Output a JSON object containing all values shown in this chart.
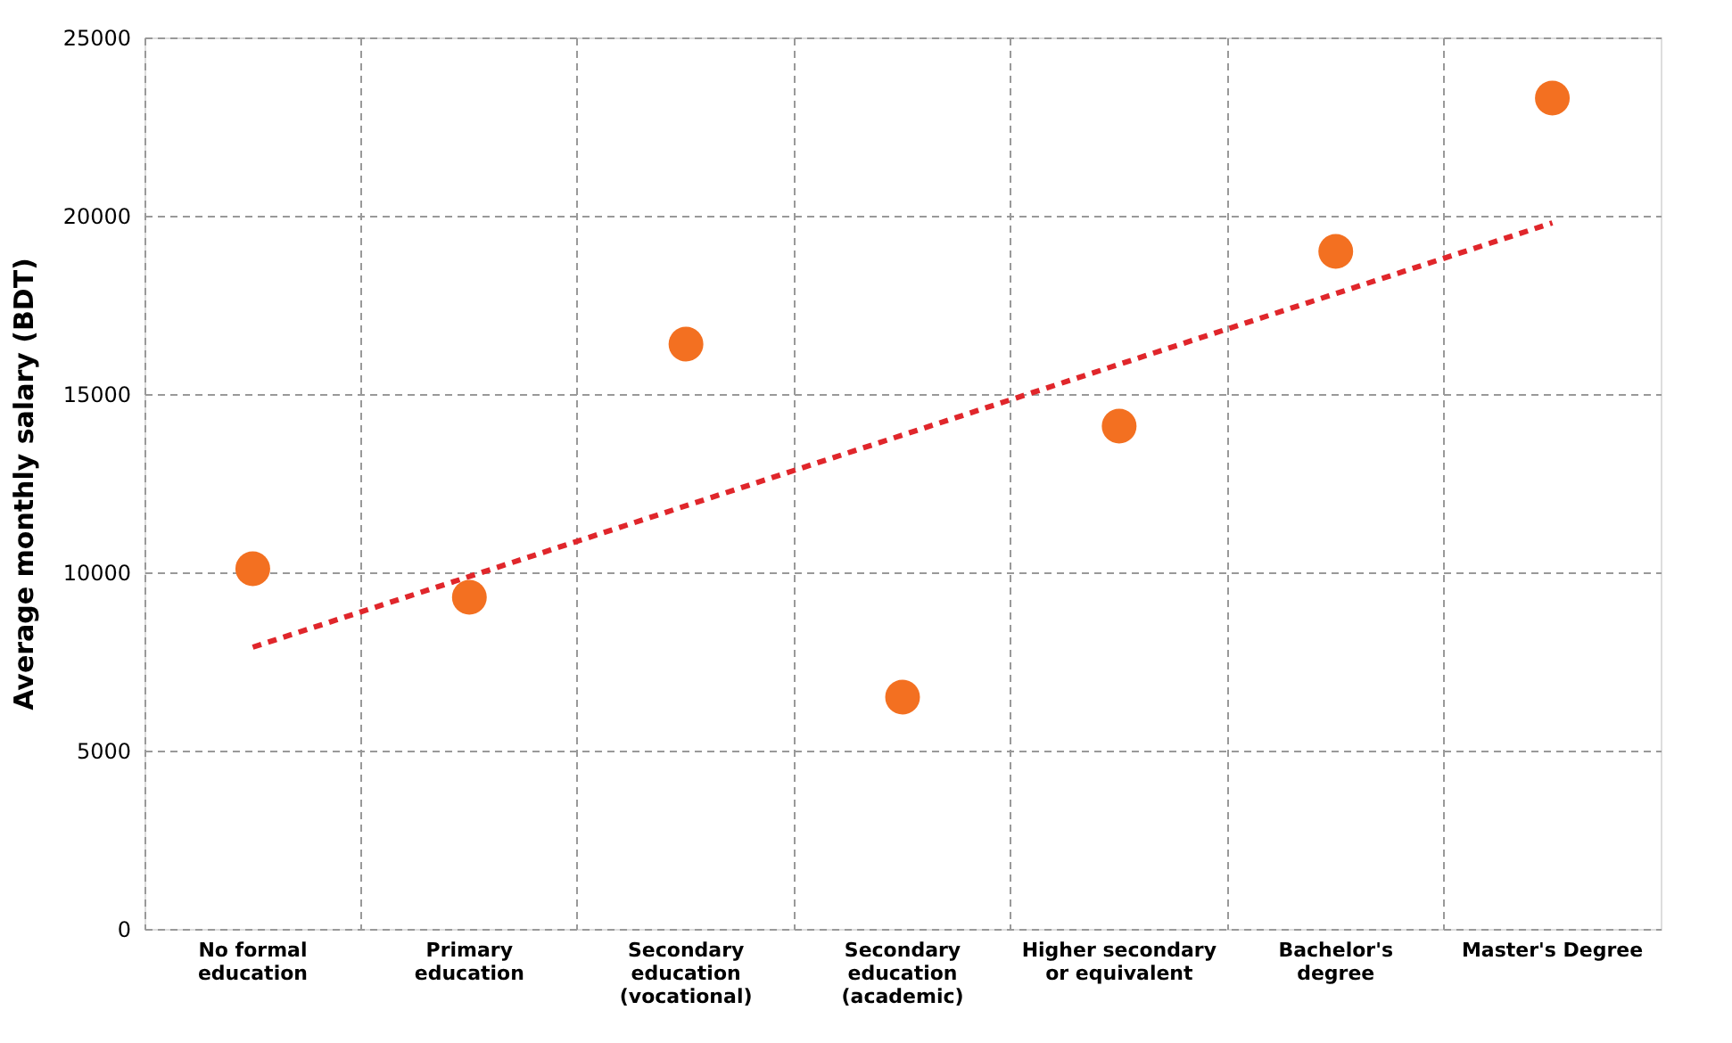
{
  "chart_data": {
    "type": "scatter",
    "ylabel": "Average monthly salary (BDT)",
    "categories": [
      "No formal education",
      "Primary education",
      "Secondary education (vocational)",
      "Secondary education (academic)",
      "Higher secondary or equivalent",
      "Bachelor's degree",
      "Master's Degree"
    ],
    "series": [
      {
        "color": "#f37021",
        "marker": "circle",
        "values": [
          10100,
          9300,
          16400,
          6500,
          14100,
          19000,
          23300
        ]
      },
      {
        "type": "line",
        "color": "#e0262b",
        "line_style": "dashed",
        "x": [
          "No formal education",
          "Master's Degree"
        ],
        "values": [
          7900,
          19800
        ]
      }
    ],
    "ylim": [
      0,
      25000
    ],
    "yticks": [
      0,
      5000,
      10000,
      15000,
      20000,
      25000
    ],
    "grid": true
  }
}
